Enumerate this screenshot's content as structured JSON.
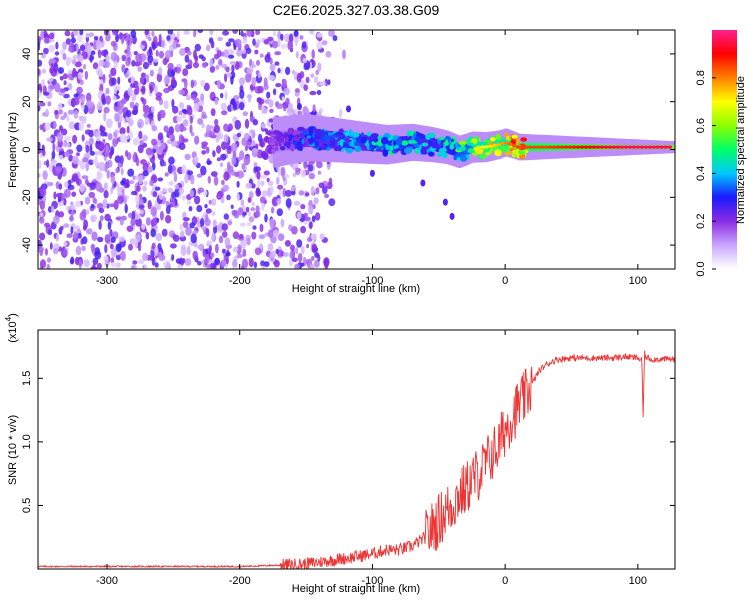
{
  "title": "C2E6.2025.327.03.38.G09",
  "chart_data": [
    {
      "type": "heatmap",
      "name": "spectrogram",
      "xlabel": "Height of straight line (km)",
      "ylabel": "Frequency (Hz)",
      "xlim": [
        -352,
        128
      ],
      "ylim": [
        -50,
        50
      ],
      "xticks": [
        -300,
        -200,
        -100,
        0,
        100
      ],
      "xtick_labels": [
        "-300",
        "-200",
        "-100",
        "0",
        "100"
      ],
      "yticks": [
        -40,
        -20,
        0,
        20,
        40
      ],
      "ytick_labels": [
        "-40",
        "-20",
        "0",
        "20",
        "40"
      ],
      "noise_region_km": [
        -352,
        -150
      ],
      "signal_track": {
        "x": [
          -175,
          -150,
          -130,
          -110,
          -90,
          -70,
          -55,
          -45,
          -35,
          -25,
          -15,
          -5,
          0,
          10,
          30,
          60,
          90,
          110,
          128
        ],
        "freq_hz": [
          3,
          5,
          4,
          3,
          2,
          3,
          2,
          1,
          -1,
          1,
          1,
          2,
          3,
          1,
          1,
          1,
          1,
          1,
          1
        ],
        "amplitude": [
          0.2,
          0.35,
          0.4,
          0.4,
          0.45,
          0.45,
          0.4,
          0.45,
          0.55,
          0.6,
          0.7,
          0.75,
          0.8,
          0.85,
          0.85,
          0.9,
          0.95,
          0.95,
          0.95
        ]
      },
      "colorbar": {
        "label": "Normalized spectral amplitude",
        "range": [
          0,
          1
        ],
        "ticks": [
          0.0,
          0.2,
          0.4,
          0.6,
          0.8
        ],
        "tick_labels": [
          "0.0",
          "0.2",
          "0.4",
          "0.6",
          "0.8"
        ],
        "colors": [
          "#ffffff",
          "#c9a6ff",
          "#8a2be2",
          "#1a1aff",
          "#00c8ff",
          "#00ff66",
          "#8cff00",
          "#ffff00",
          "#ff8000",
          "#ff0000",
          "#ff2090"
        ]
      }
    },
    {
      "type": "line",
      "name": "snr",
      "xlabel": "Height of straight line (km)",
      "ylabel": "SNR (10 * v/v)",
      "multiplier_label": "(x10",
      "multiplier_exp": "4",
      "multiplier_close": ")",
      "xlim": [
        -352,
        128
      ],
      "ylim": [
        0,
        1.88
      ],
      "xticks": [
        -300,
        -200,
        -100,
        0,
        100
      ],
      "xtick_labels": [
        "-300",
        "-200",
        "-100",
        "0",
        "100"
      ],
      "yticks": [
        0.5,
        1.0,
        1.5
      ],
      "ytick_labels": [
        "0.5",
        "1.0",
        "1.5"
      ],
      "series": [
        {
          "name": "SNR",
          "color": "#ee3333",
          "x": [
            -352,
            -300,
            -250,
            -200,
            -170,
            -150,
            -130,
            -110,
            -100,
            -90,
            -80,
            -70,
            -60,
            -55,
            -50,
            -45,
            -40,
            -35,
            -30,
            -25,
            -20,
            -15,
            -10,
            -5,
            0,
            5,
            10,
            15,
            20,
            25,
            30,
            35,
            40,
            50,
            60,
            70,
            80,
            90,
            100,
            103,
            104,
            105,
            106,
            108,
            110,
            115,
            120,
            128
          ],
          "y": [
            0.02,
            0.02,
            0.02,
            0.02,
            0.03,
            0.04,
            0.07,
            0.1,
            0.12,
            0.15,
            0.15,
            0.18,
            0.25,
            0.32,
            0.38,
            0.45,
            0.5,
            0.58,
            0.62,
            0.7,
            0.75,
            0.82,
            0.9,
            0.97,
            1.1,
            1.2,
            1.28,
            1.35,
            1.45,
            1.55,
            1.6,
            1.63,
            1.65,
            1.66,
            1.66,
            1.66,
            1.66,
            1.67,
            1.66,
            1.64,
            1.2,
            1.7,
            1.66,
            1.66,
            1.65,
            1.65,
            1.65,
            1.65
          ]
        }
      ]
    }
  ]
}
